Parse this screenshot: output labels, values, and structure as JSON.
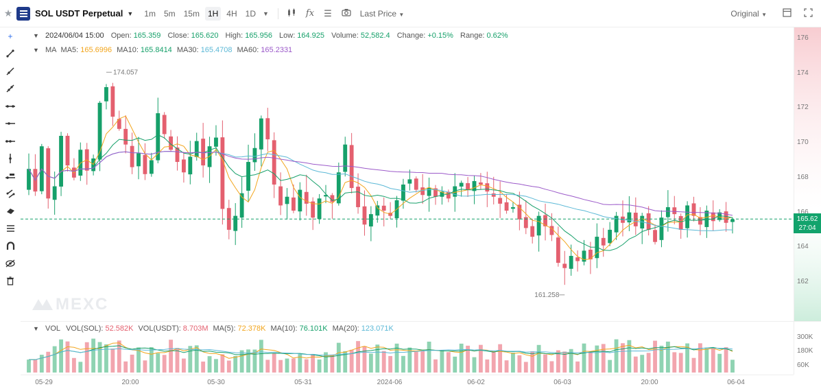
{
  "header": {
    "symbol": "SOL USDT Perpetual",
    "intervals": [
      {
        "label": "1m",
        "active": false
      },
      {
        "label": "5m",
        "active": false
      },
      {
        "label": "15m",
        "active": false
      },
      {
        "label": "1H",
        "active": true
      },
      {
        "label": "4H",
        "active": false
      },
      {
        "label": "1D",
        "active": false
      }
    ],
    "price_type": "Last Price",
    "view_mode": "Original"
  },
  "info": {
    "date": "2024/06/04 15:00",
    "open_label": "Open:",
    "open": "165.359",
    "close_label": "Close:",
    "close": "165.620",
    "high_label": "High:",
    "high": "165.956",
    "low_label": "Low:",
    "low": "164.925",
    "volume_label": "Volume:",
    "volume": "52,582.4",
    "change_label": "Change:",
    "change": "+0.15%",
    "range_label": "Range:",
    "range": "0.62%"
  },
  "ma_info": {
    "title": "MA",
    "items": [
      {
        "label": "MA5:",
        "value": "165.6996",
        "color": "#f2a51c"
      },
      {
        "label": "MA10:",
        "value": "165.8414",
        "color": "#16a06a"
      },
      {
        "label": "MA30:",
        "value": "165.4708",
        "color": "#5bb8d6"
      },
      {
        "label": "MA60:",
        "value": "165.2331",
        "color": "#9b59c9"
      }
    ]
  },
  "vol_info": {
    "title": "VOL",
    "items": [
      {
        "label": "VOL(SOL):",
        "value": "52.582K",
        "color": "#e4606f"
      },
      {
        "label": "VOL(USDT):",
        "value": "8.703M",
        "color": "#e4606f"
      },
      {
        "label": "MA(5):",
        "value": "72.378K",
        "color": "#f2a51c"
      },
      {
        "label": "MA(10):",
        "value": "76.101K",
        "color": "#16a06a"
      },
      {
        "label": "MA(20):",
        "value": "123.071K",
        "color": "#5bb8d6"
      }
    ]
  },
  "price_axis": [
    "176",
    "174",
    "172",
    "170",
    "168",
    "166",
    "164",
    "162"
  ],
  "last_price": {
    "price": "165.62",
    "countdown": "27:04"
  },
  "volume_axis": [
    "300K",
    "180K",
    "60K"
  ],
  "time_axis": [
    "05-29",
    "20:00",
    "05-30",
    "05-31",
    "2024-06",
    "06-02",
    "06-03",
    "20:00",
    "06-04"
  ],
  "watermark": "MEXC",
  "colors": {
    "up": "#16a06a",
    "down": "#e4606f",
    "ma5": "#f2a51c",
    "ma10": "#16a06a",
    "ma30": "#5bb8d6",
    "ma60": "#9b59c9"
  },
  "chart_data": {
    "type": "candlestick",
    "series_summary": "SOL/USDT hourly candles",
    "y_range": [
      161,
      177
    ],
    "highest_label": "174.057",
    "lowest_label": "161.258",
    "current_price": 165.62,
    "candles_approx_close": [
      168.5,
      167.2,
      169.8,
      166.8,
      167.5,
      170.4,
      168.7,
      168.0,
      169.6,
      168.4,
      169.1,
      172.3,
      173.2,
      171.5,
      170.8,
      169.9,
      168.6,
      169.4,
      168.2,
      169.0,
      171.7,
      170.5,
      169.6,
      168.9,
      168.3,
      169.2,
      170.1,
      168.7,
      169.8,
      170.3,
      166.2,
      165.0,
      165.8,
      167.1,
      168.9,
      169.7,
      171.4,
      170.2,
      167.6,
      166.4,
      166.9,
      166.1,
      167.3,
      166.5,
      165.7,
      166.8,
      167.0,
      166.6,
      168.3,
      169.9,
      167.4,
      166.3,
      165.3,
      165.9,
      166.4,
      166.1,
      165.8,
      166.7,
      167.6,
      167.9,
      167.3,
      167.0,
      167.4,
      166.9,
      167.2,
      166.8,
      167.5,
      167.7,
      167.3,
      167.8,
      167.6,
      167.2,
      166.9,
      166.5,
      166.1,
      166.3,
      165.6,
      165.1,
      164.6,
      165.8,
      165.2,
      164.7,
      163.1,
      162.8,
      163.5,
      163.2,
      163.8,
      163.3,
      164.6,
      164.1,
      165.0,
      165.8,
      165.4,
      166.0,
      165.2,
      165.8,
      165.0,
      164.3,
      165.7,
      166.3,
      165.9,
      165.0,
      166.4,
      165.8,
      165.3,
      166.1,
      165.5,
      166.0,
      165.4,
      165.6
    ],
    "ma_series": [
      "MA5",
      "MA10",
      "MA30",
      "MA60"
    ],
    "volume_series": [
      "VOL(SOL)",
      "MA(5)",
      "MA(10)",
      "MA(20)"
    ]
  }
}
